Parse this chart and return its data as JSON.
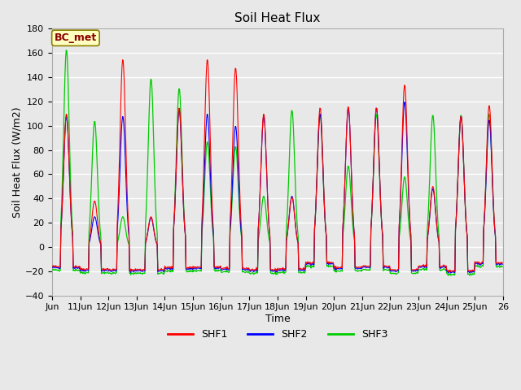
{
  "title": "Soil Heat Flux",
  "xlabel": "Time",
  "ylabel": "Soil Heat Flux (W/m2)",
  "ylim": [
    -40,
    180
  ],
  "yticks": [
    -40,
    -20,
    0,
    20,
    40,
    60,
    80,
    100,
    120,
    140,
    160,
    180
  ],
  "xtick_labels": [
    "Jun",
    "11Jun",
    "12Jun",
    "13Jun",
    "14Jun",
    "15Jun",
    "16Jun",
    "17Jun",
    "18Jun",
    "19Jun",
    "20Jun",
    "21Jun",
    "22Jun",
    "23Jun",
    "24Jun",
    "25Jun",
    "26"
  ],
  "colors": {
    "SHF1": "#FF0000",
    "SHF2": "#0000FF",
    "SHF3": "#00CC00"
  },
  "annotation_text": "BC_met",
  "annotation_color": "#8B0000",
  "annotation_bg": "#FFFFC0",
  "plot_bg": "#E8E8E8",
  "outer_bg": "#E8E8E8",
  "grid_color": "#FFFFFF",
  "title_fontsize": 11,
  "label_fontsize": 9,
  "tick_fontsize": 8,
  "n_days": 16,
  "n_per_day": 48,
  "peaks_shf1": [
    110,
    38,
    155,
    25,
    115,
    155,
    148,
    110,
    41,
    115,
    116,
    115,
    134,
    50,
    108,
    117
  ],
  "peaks_shf2": [
    108,
    25,
    108,
    24,
    113,
    110,
    100,
    108,
    42,
    110,
    115,
    115,
    120,
    48,
    108,
    105
  ],
  "peaks_shf3": [
    163,
    104,
    25,
    139,
    131,
    87,
    83,
    42,
    113,
    110,
    67,
    110,
    58,
    109,
    109,
    110
  ]
}
